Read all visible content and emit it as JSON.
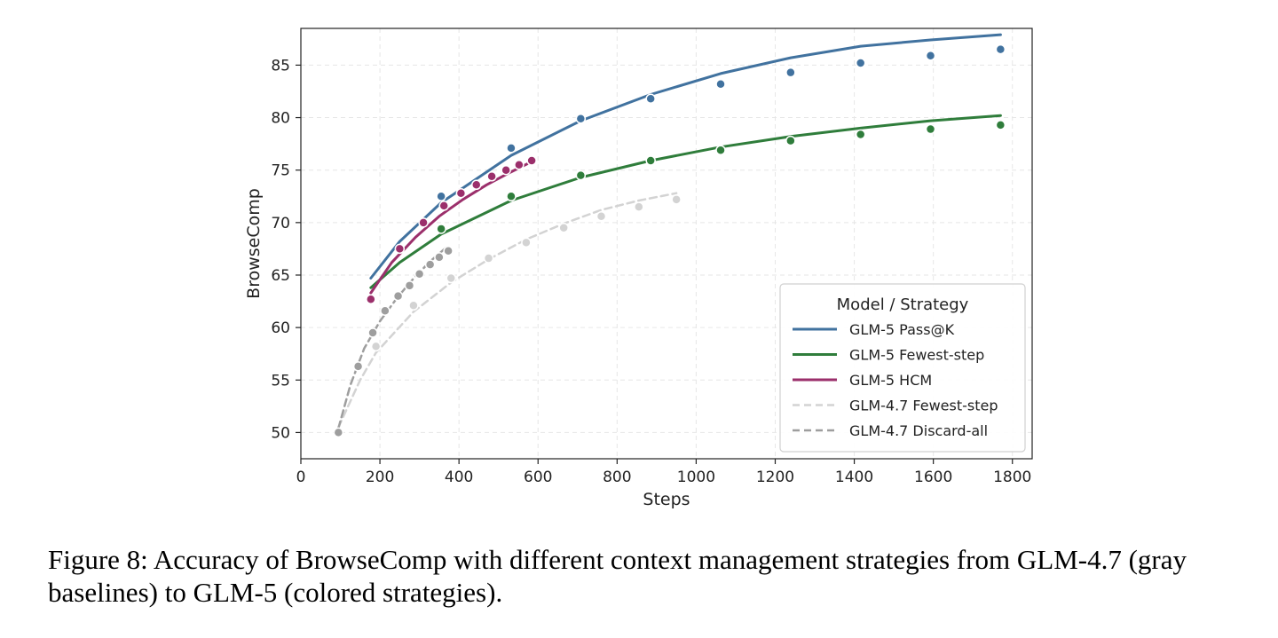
{
  "caption": "Figure 8: Accuracy of BrowseComp with different context management strategies from GLM-4.7 (gray baselines) to GLM-5 (colored strategies).",
  "chart_data": {
    "type": "scatter",
    "xlabel": "Steps",
    "ylabel": "BrowseComp",
    "xlim": [
      0,
      1850
    ],
    "ylim": [
      47.5,
      88.5
    ],
    "xticks": [
      0,
      200,
      400,
      600,
      800,
      1000,
      1200,
      1400,
      1600,
      1800
    ],
    "yticks": [
      50,
      55,
      60,
      65,
      70,
      75,
      80,
      85
    ],
    "grid": true,
    "legend": {
      "title": "Model / Strategy",
      "placement": "lower-right"
    },
    "series": [
      {
        "name": "GLM-5 Pass@K",
        "color": "#41729f",
        "line_style": "solid",
        "points": [
          [
            355,
            72.5
          ],
          [
            532,
            77.1
          ],
          [
            708,
            79.9
          ],
          [
            885,
            81.8
          ],
          [
            1062,
            83.2
          ],
          [
            1239,
            84.3
          ],
          [
            1416,
            85.2
          ],
          [
            1593,
            85.9
          ],
          [
            1770,
            86.5
          ]
        ],
        "fit": [
          [
            177,
            64.7
          ],
          [
            250,
            68.2
          ],
          [
            355,
            71.9
          ],
          [
            532,
            76.4
          ],
          [
            708,
            79.7
          ],
          [
            885,
            82.2
          ],
          [
            1062,
            84.2
          ],
          [
            1239,
            85.7
          ],
          [
            1416,
            86.8
          ],
          [
            1593,
            87.4
          ],
          [
            1770,
            87.9
          ]
        ]
      },
      {
        "name": "GLM-5 Fewest-step",
        "color": "#2f7d3b",
        "line_style": "solid",
        "points": [
          [
            355,
            69.4
          ],
          [
            532,
            72.5
          ],
          [
            708,
            74.5
          ],
          [
            885,
            75.9
          ],
          [
            1062,
            76.9
          ],
          [
            1239,
            77.8
          ],
          [
            1416,
            78.4
          ],
          [
            1593,
            78.9
          ],
          [
            1770,
            79.3
          ]
        ],
        "fit": [
          [
            177,
            63.8
          ],
          [
            250,
            66.2
          ],
          [
            355,
            68.9
          ],
          [
            532,
            72.1
          ],
          [
            708,
            74.3
          ],
          [
            885,
            75.9
          ],
          [
            1062,
            77.2
          ],
          [
            1239,
            78.2
          ],
          [
            1416,
            79.0
          ],
          [
            1593,
            79.7
          ],
          [
            1770,
            80.2
          ]
        ]
      },
      {
        "name": "GLM-5 HCM",
        "color": "#9b2f6b",
        "line_style": "solid",
        "points": [
          [
            177,
            62.7
          ],
          [
            250,
            67.5
          ],
          [
            310,
            70.0
          ],
          [
            362,
            71.6
          ],
          [
            405,
            72.8
          ],
          [
            444,
            73.6
          ],
          [
            483,
            74.4
          ],
          [
            519,
            75.0
          ],
          [
            552,
            75.5
          ],
          [
            584,
            75.9
          ]
        ],
        "fit": [
          [
            177,
            63.3
          ],
          [
            230,
            66.2
          ],
          [
            290,
            68.6
          ],
          [
            350,
            70.6
          ],
          [
            410,
            72.2
          ],
          [
            470,
            73.6
          ],
          [
            530,
            74.8
          ],
          [
            584,
            75.8
          ]
        ]
      },
      {
        "name": "GLM-4.7 Fewest-step",
        "color": "#d3d3d3",
        "line_style": "dashed",
        "points": [
          [
            190,
            58.2
          ],
          [
            285,
            62.1
          ],
          [
            380,
            64.7
          ],
          [
            475,
            66.6
          ],
          [
            570,
            68.1
          ],
          [
            665,
            69.5
          ],
          [
            760,
            70.6
          ],
          [
            855,
            71.5
          ],
          [
            950,
            72.2
          ]
        ],
        "fit": [
          [
            95,
            50.5
          ],
          [
            150,
            55.0
          ],
          [
            190,
            57.6
          ],
          [
            285,
            61.5
          ],
          [
            380,
            64.3
          ],
          [
            475,
            66.5
          ],
          [
            570,
            68.4
          ],
          [
            665,
            69.9
          ],
          [
            760,
            71.2
          ],
          [
            855,
            72.1
          ],
          [
            950,
            72.8
          ]
        ]
      },
      {
        "name": "GLM-4.7 Discard-all",
        "color": "#9e9e9e",
        "line_style": "dashed",
        "points": [
          [
            95,
            50.0
          ],
          [
            145,
            56.3
          ],
          [
            182,
            59.5
          ],
          [
            213,
            61.6
          ],
          [
            246,
            63.0
          ],
          [
            275,
            64.0
          ],
          [
            300,
            65.1
          ],
          [
            327,
            66.0
          ],
          [
            350,
            66.7
          ],
          [
            373,
            67.3
          ]
        ],
        "fit": [
          [
            95,
            50.4
          ],
          [
            125,
            54.5
          ],
          [
            160,
            58.0
          ],
          [
            200,
            60.6
          ],
          [
            245,
            62.9
          ],
          [
            290,
            64.9
          ],
          [
            330,
            66.4
          ],
          [
            373,
            67.8
          ]
        ]
      }
    ]
  }
}
